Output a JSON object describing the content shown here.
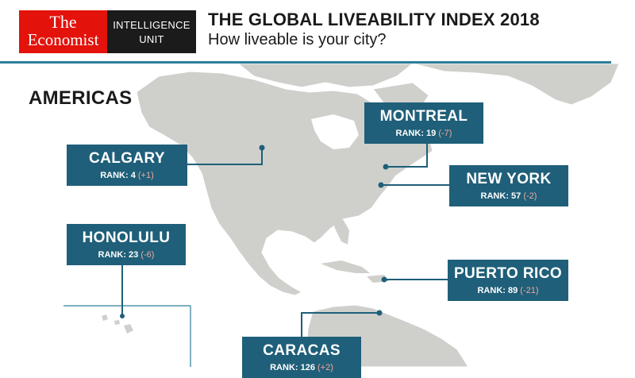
{
  "brand": {
    "line1": "The",
    "line2": "Economist",
    "unit_line1": "INTELLIGENCE",
    "unit_line2": "UNIT"
  },
  "header": {
    "title": "THE GLOBAL LIVEABILITY INDEX 2018",
    "subtitle": "How liveable is your city?"
  },
  "region": "AMERICAS",
  "cities": [
    {
      "name": "MONTREAL",
      "rank_text": "RANK: 19 ",
      "change": "(-7)"
    },
    {
      "name": "CALGARY",
      "rank_text": "RANK:  4 ",
      "change": "(+1)"
    },
    {
      "name": "NEW YORK",
      "rank_text": "RANK: 57 ",
      "change": "(-2)"
    },
    {
      "name": "HONOLULU",
      "rank_text": "RANK:  23 ",
      "change": "(-6)"
    },
    {
      "name": "PUERTO RICO",
      "rank_text": "RANK: 89 ",
      "change": "(-21)"
    },
    {
      "name": "CARACAS",
      "rank_text": "RANK: 126 ",
      "change": "(+2)"
    }
  ],
  "colors": {
    "brand_red": "#e3120b",
    "label_bg": "#1f5f79",
    "rule": "#2e7f9b",
    "land": "#cfd0cc",
    "sea": "#ffffff",
    "change_text": "#f3a8a0"
  }
}
